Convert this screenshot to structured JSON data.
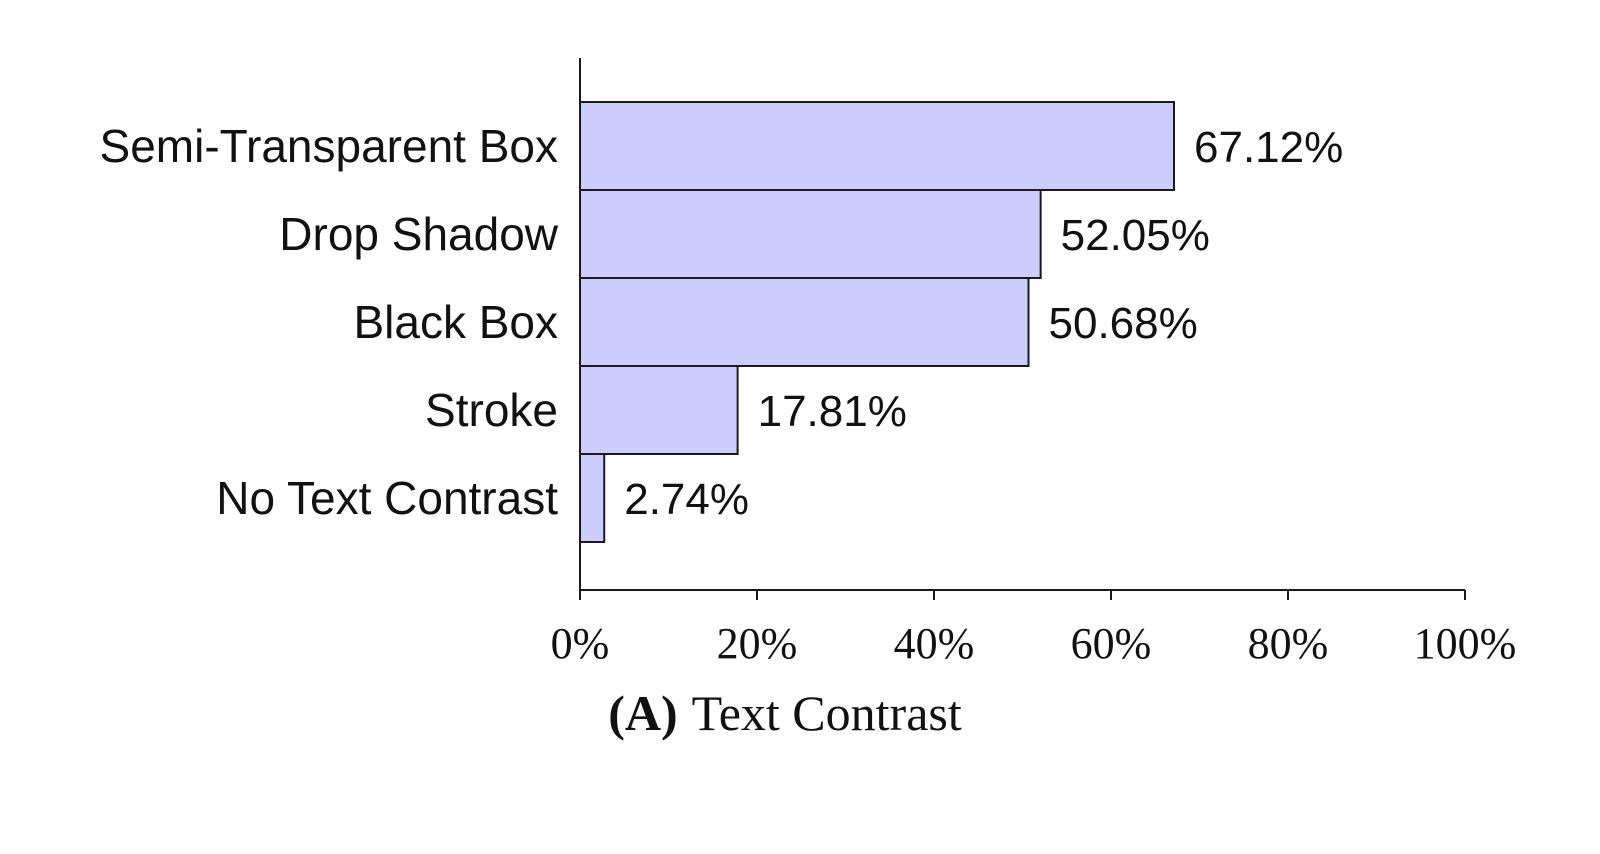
{
  "chart_data": {
    "type": "bar",
    "orientation": "horizontal",
    "categories": [
      "Semi-Transparent Box",
      "Drop Shadow",
      "Black Box",
      "Stroke",
      "No Text Contrast"
    ],
    "values": [
      67.12,
      52.05,
      50.68,
      17.81,
      2.74
    ],
    "value_labels": [
      "67.12%",
      "52.05%",
      "50.68%",
      "17.81%",
      "2.74%"
    ],
    "xlim": [
      0,
      100
    ],
    "x_ticks": [
      0,
      20,
      40,
      60,
      80,
      100
    ],
    "x_tick_labels": [
      "0%",
      "20%",
      "40%",
      "60%",
      "80%",
      "100%"
    ],
    "caption_prefix": "(A)",
    "caption_text": "Text Contrast",
    "bar_color": "#ccccff",
    "bar_edge_color": "#1a1a1a",
    "grid": false
  }
}
